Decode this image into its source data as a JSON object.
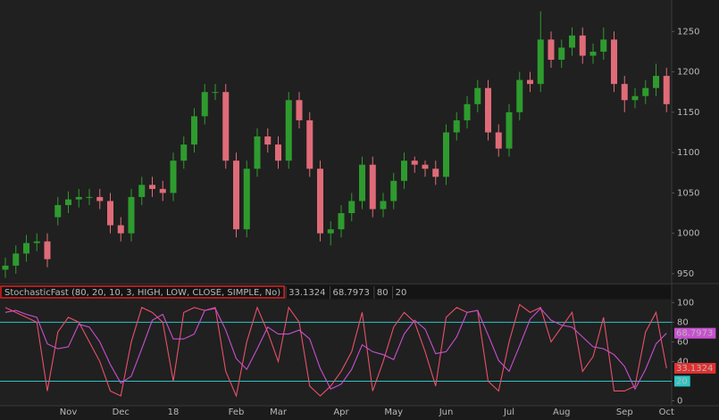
{
  "chart_data": [
    {
      "type": "candlestick",
      "open": [
        955,
        960,
        975,
        988,
        990,
        1020,
        1035,
        1042,
        1045,
        1045,
        1040,
        1010,
        1000,
        1045,
        1060,
        1055,
        1050,
        1090,
        1110,
        1145,
        1175,
        1175,
        1090,
        1005,
        1080,
        1120,
        1110,
        1090,
        1165,
        1140,
        1080,
        1000,
        1005,
        1025,
        1040,
        1085,
        1030,
        1040,
        1065,
        1090,
        1085,
        1080,
        1070,
        1125,
        1140,
        1160,
        1180,
        1125,
        1105,
        1150,
        1190,
        1185,
        1240,
        1215,
        1230,
        1245,
        1220,
        1225,
        1240,
        1185,
        1165,
        1170,
        1180,
        1195
      ],
      "high": [
        970,
        985,
        998,
        1000,
        1000,
        1045,
        1052,
        1055,
        1055,
        1055,
        1050,
        1020,
        1055,
        1070,
        1070,
        1065,
        1100,
        1120,
        1155,
        1185,
        1185,
        1185,
        1100,
        1090,
        1130,
        1130,
        1120,
        1175,
        1175,
        1150,
        1090,
        1015,
        1035,
        1050,
        1095,
        1095,
        1050,
        1075,
        1100,
        1095,
        1090,
        1090,
        1135,
        1150,
        1170,
        1190,
        1190,
        1135,
        1160,
        1200,
        1200,
        1275,
        1250,
        1240,
        1255,
        1255,
        1235,
        1255,
        1250,
        1195,
        1180,
        1190,
        1210,
        1205
      ],
      "low": [
        945,
        950,
        965,
        978,
        958,
        1010,
        1025,
        1032,
        1035,
        1030,
        1000,
        990,
        990,
        1035,
        1045,
        1040,
        1040,
        1080,
        1100,
        1135,
        1165,
        1080,
        995,
        995,
        1070,
        1100,
        1080,
        1080,
        1130,
        1070,
        990,
        985,
        995,
        1015,
        1030,
        1020,
        1020,
        1030,
        1055,
        1075,
        1070,
        1060,
        1060,
        1115,
        1130,
        1150,
        1115,
        1095,
        1095,
        1140,
        1175,
        1175,
        1205,
        1205,
        1220,
        1210,
        1210,
        1215,
        1175,
        1150,
        1155,
        1160,
        1170,
        1150
      ],
      "close": [
        960,
        975,
        988,
        990,
        968,
        1035,
        1042,
        1045,
        1045,
        1040,
        1010,
        1000,
        1045,
        1060,
        1055,
        1050,
        1090,
        1110,
        1145,
        1175,
        1175,
        1090,
        1005,
        1080,
        1120,
        1110,
        1090,
        1165,
        1140,
        1080,
        1000,
        1005,
        1025,
        1040,
        1085,
        1030,
        1040,
        1065,
        1090,
        1085,
        1080,
        1070,
        1125,
        1140,
        1160,
        1180,
        1125,
        1105,
        1150,
        1190,
        1185,
        1240,
        1215,
        1230,
        1245,
        1220,
        1225,
        1240,
        1185,
        1165,
        1170,
        1180,
        1195,
        1160
      ],
      "up_color": "#2e9b2e",
      "down_color": "#e06b78",
      "ylim": [
        940,
        1289
      ],
      "yticks": [
        950,
        1000,
        1050,
        1100,
        1150,
        1200,
        1250
      ]
    },
    {
      "type": "line",
      "title": "StochasticFast (80, 20, 10, 3, HIGH, LOW, CLOSE, SIMPLE, No)",
      "categories": [
        null,
        null,
        null,
        null,
        null,
        null,
        "Nov",
        null,
        null,
        null,
        null,
        "Dec",
        null,
        null,
        null,
        null,
        "18",
        null,
        null,
        null,
        null,
        null,
        "Feb",
        null,
        null,
        null,
        "Mar",
        null,
        null,
        null,
        null,
        null,
        "Apr",
        null,
        null,
        null,
        null,
        "May",
        null,
        null,
        null,
        null,
        "Jun",
        null,
        null,
        null,
        null,
        null,
        "Jul",
        null,
        null,
        null,
        null,
        "Aug",
        null,
        null,
        null,
        null,
        null,
        "Sep",
        null,
        null,
        null,
        "Oct"
      ],
      "series": [
        {
          "color": "#e8506a",
          "values": [
            95,
            90,
            85,
            80,
            10,
            70,
            85,
            80,
            60,
            40,
            10,
            5,
            60,
            95,
            90,
            80,
            20,
            90,
            95,
            92,
            95,
            30,
            5,
            60,
            95,
            70,
            40,
            95,
            80,
            15,
            5,
            15,
            30,
            50,
            90,
            10,
            40,
            75,
            90,
            80,
            50,
            15,
            85,
            95,
            90,
            92,
            20,
            10,
            60,
            98,
            90,
            95,
            60,
            75,
            90,
            30,
            45,
            85,
            10,
            10,
            15,
            70,
            90,
            33.1324
          ]
        },
        {
          "color": "#c94fd0",
          "values": [
            90,
            92,
            88,
            85,
            58,
            53,
            55,
            78,
            75,
            60,
            37,
            18,
            25,
            53,
            82,
            88,
            63,
            63,
            68,
            92,
            94,
            72,
            43,
            32,
            53,
            75,
            68,
            68,
            72,
            63,
            33,
            12,
            17,
            32,
            57,
            50,
            47,
            42,
            68,
            82,
            73,
            48,
            50,
            65,
            90,
            92,
            67,
            41,
            30,
            56,
            83,
            94,
            82,
            77,
            75,
            65,
            55,
            53,
            47,
            35,
            12,
            32,
            58,
            68.7973
          ]
        }
      ],
      "levels": [
        80,
        20
      ],
      "level_color": "#2ec4c4",
      "ylim": [
        -5,
        103
      ],
      "yticks": [
        0,
        40,
        60,
        80,
        100
      ]
    }
  ]
}
